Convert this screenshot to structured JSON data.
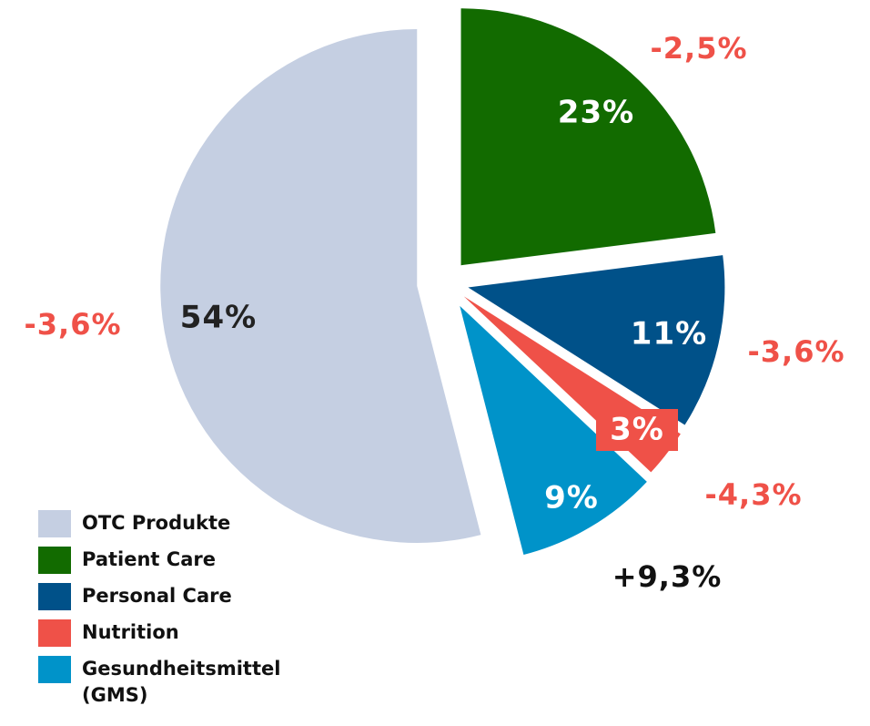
{
  "chart_data": {
    "type": "pie",
    "categories": [
      "OTC Produkte",
      "Patient Care",
      "Personal Care",
      "Nutrition",
      "Gesundheitsmittel (GMS)"
    ],
    "values": [
      54,
      23,
      11,
      3,
      9
    ],
    "value_labels": [
      "54%",
      "23%",
      "11%",
      "3%",
      "9%"
    ],
    "colors": [
      "#c5cfe2",
      "#126b00",
      "#005189",
      "#ef5148",
      "#0093c9"
    ],
    "annotations": [
      "-3,6%",
      "-2,5%",
      "-3,6%",
      "-4,3%",
      "+9,3%"
    ],
    "start_angle": 165.6,
    "legend": "bottom-left"
  }
}
